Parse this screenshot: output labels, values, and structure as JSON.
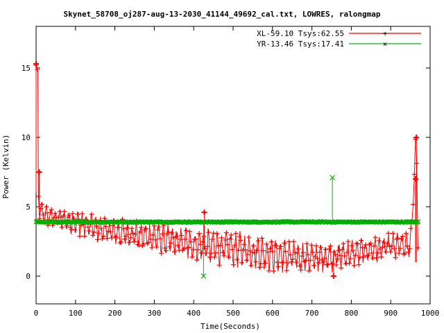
{
  "chart_data": {
    "type": "line",
    "title": "Skynet_58708_oj287-aug-13-2030_41144_49692_cal.txt, LOWRES, ralongmap",
    "xlabel": "Time(Seconds)",
    "ylabel": "Power (Kelvin)",
    "xlim": [
      0,
      1000
    ],
    "ylim": [
      -2,
      18
    ],
    "xticks": [
      0,
      100,
      200,
      300,
      400,
      500,
      600,
      700,
      800,
      900,
      1000
    ],
    "yticks": [
      0,
      5,
      10,
      15
    ],
    "grid": false,
    "legend_position": "top-right",
    "series": [
      {
        "name": "XL-59.10 Tsys:62.55",
        "color": "#ff0000",
        "marker": "plus",
        "baseline": [
          [
            0,
            15.3
          ],
          [
            5,
            6.0
          ],
          [
            10,
            4.6
          ],
          [
            30,
            4.3
          ],
          [
            60,
            4.1
          ],
          [
            100,
            3.9
          ],
          [
            150,
            3.5
          ],
          [
            200,
            3.2
          ],
          [
            250,
            3.0
          ],
          [
            300,
            2.8
          ],
          [
            350,
            2.5
          ],
          [
            400,
            2.3
          ],
          [
            450,
            2.1
          ],
          [
            500,
            2.0
          ],
          [
            550,
            1.8
          ],
          [
            600,
            1.6
          ],
          [
            650,
            1.4
          ],
          [
            700,
            1.3
          ],
          [
            750,
            1.4
          ],
          [
            800,
            1.6
          ],
          [
            850,
            1.9
          ],
          [
            900,
            2.1
          ],
          [
            950,
            2.2
          ],
          [
            965,
            10.0
          ],
          [
            970,
            1.1
          ]
        ],
        "spread_x": [
          0,
          500,
          970
        ],
        "spread_y": [
          0.6,
          1.0,
          0.7
        ],
        "spikes": [
          {
            "x": 0,
            "y": 15.3,
            "base": 6.0
          },
          {
            "x": 8,
            "y": 7.5,
            "base": 4.4
          },
          {
            "x": 427,
            "y": 4.6,
            "base": 1.9
          },
          {
            "x": 755,
            "y": 0.0,
            "base": 1.8
          },
          {
            "x": 963,
            "y": 7.0,
            "base": 1.0
          },
          {
            "x": 965,
            "y": 10.0,
            "base": 1.0
          }
        ]
      },
      {
        "name": "YR-13.46 Tsys:17.41",
        "color": "#00b000",
        "marker": "cross",
        "baseline": [
          [
            0,
            3.9
          ],
          [
            970,
            3.9
          ]
        ],
        "spikes": [
          {
            "x": 425,
            "y": 0.0,
            "base": 3.9
          },
          {
            "x": 752,
            "y": 7.1,
            "base": 3.9
          }
        ]
      }
    ]
  }
}
